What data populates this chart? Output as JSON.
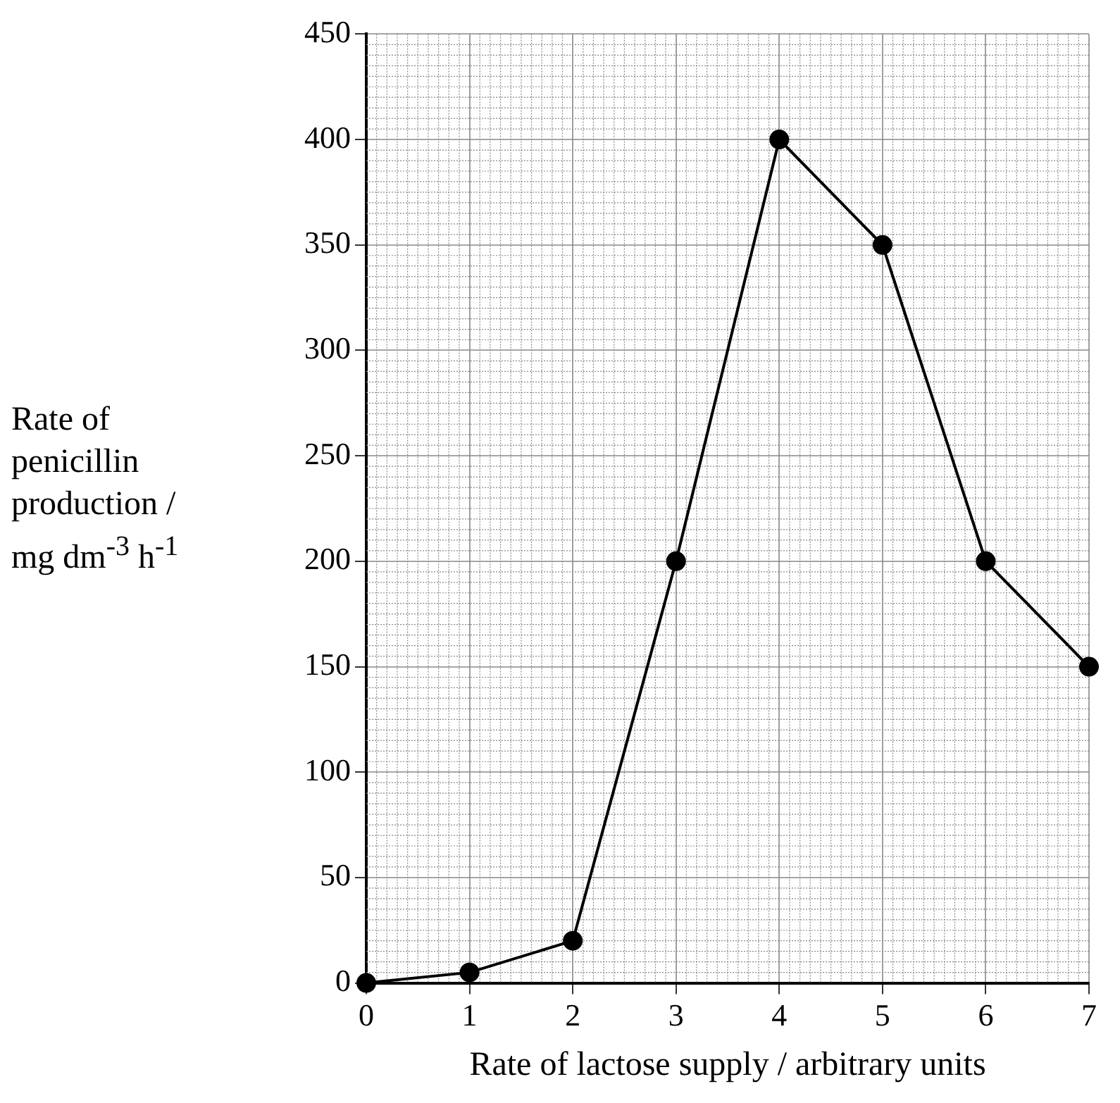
{
  "chart_data": {
    "type": "line",
    "xlabel": "Rate of lactose supply / arbitrary units",
    "ylabel": "Rate of penicillin production / mg dm$^{-3}$ h$^{-1}$",
    "x": [
      0,
      1,
      2,
      3,
      4,
      5,
      6,
      7
    ],
    "series": [
      {
        "color": "#000000",
        "values": [
          0,
          5,
          20,
          200,
          400,
          350,
          200,
          150
        ]
      }
    ],
    "xlim": [
      0,
      7
    ],
    "xticks": [
      0,
      1,
      2,
      3,
      4,
      5,
      6,
      7
    ],
    "ylim": [
      0,
      450
    ],
    "yticks": [
      0,
      50,
      100,
      150,
      200,
      250,
      300,
      350,
      400,
      450
    ],
    "grid": true,
    "legend": false,
    "marker": "circle",
    "line_style": "solid"
  }
}
